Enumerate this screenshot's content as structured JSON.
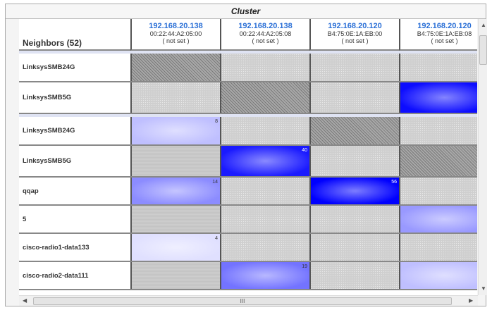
{
  "title": "Cluster",
  "neighbors_header": "Neighbors (52)",
  "columns": [
    {
      "ip": "192.168.20.138",
      "mac": "00:22:44:A2:05:00",
      "name": "( not set )"
    },
    {
      "ip": "192.168.20.138",
      "mac": "00:22:44:A2:05:08",
      "name": "( not set )"
    },
    {
      "ip": "192.168.20.120",
      "mac": "B4:75:0E:1A:EB:00",
      "name": "( not set )"
    },
    {
      "ip": "192.168.20.120",
      "mac": "B4:75:0E:1A:EB:08",
      "name": "( not set )"
    }
  ],
  "rows": [
    {
      "label": "LinksysSMB24G",
      "cells": [
        {
          "t": "dark"
        },
        {
          "t": "dot"
        },
        {
          "t": "dot"
        },
        {
          "t": "dot"
        }
      ]
    },
    {
      "label": "LinksysSMB5G",
      "cells": [
        {
          "t": "dot"
        },
        {
          "t": "dark"
        },
        {
          "t": "dot"
        },
        {
          "t": "blue",
          "level": 0.95
        }
      ]
    },
    {
      "label": "LinksysSMB24G",
      "cells": [
        {
          "t": "blue",
          "v": "8",
          "level": 0.25
        },
        {
          "t": "dot"
        },
        {
          "t": "dark"
        },
        {
          "t": "dot"
        }
      ]
    },
    {
      "label": "LinksysSMB5G",
      "cells": [
        {
          "t": "gray"
        },
        {
          "t": "blue",
          "v": "40",
          "level": 0.9
        },
        {
          "t": "dot"
        },
        {
          "t": "dark"
        }
      ]
    },
    {
      "label": "qqap",
      "cells": [
        {
          "t": "blue",
          "v": "14",
          "level": 0.45
        },
        {
          "t": "dot"
        },
        {
          "t": "blue",
          "v": "56",
          "level": 1
        },
        {
          "t": "dot"
        }
      ]
    },
    {
      "label": "5",
      "cells": [
        {
          "t": "gray"
        },
        {
          "t": "dot"
        },
        {
          "t": "dot"
        },
        {
          "t": "blue",
          "level": 0.4
        }
      ]
    },
    {
      "label": "cisco-radio1-data133",
      "cells": [
        {
          "t": "blue",
          "v": "4",
          "level": 0.12
        },
        {
          "t": "dot"
        },
        {
          "t": "dot"
        },
        {
          "t": "dot"
        }
      ]
    },
    {
      "label": "cisco-radio2-data111",
      "cells": [
        {
          "t": "gray"
        },
        {
          "t": "blue",
          "v": "19",
          "level": 0.55
        },
        {
          "t": "dot"
        },
        {
          "t": "blue",
          "level": 0.25
        }
      ]
    }
  ],
  "scroll_grip": "III"
}
